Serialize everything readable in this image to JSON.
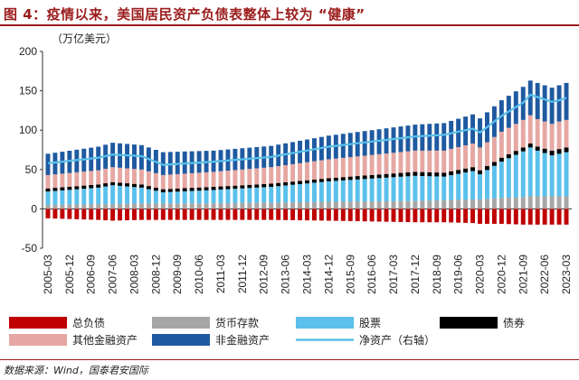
{
  "figure": {
    "title": "图 4：疫情以来，美国居民资产负债表整体上较为 “健康”",
    "source": "数据来源：Wind，国泰君安国际"
  },
  "colors": {
    "title": "#9b1b1b",
    "liabilities": "#c00000",
    "cash_deposits": "#a6a6a6",
    "stocks": "#5bc0eb",
    "bonds": "#000000",
    "other_financial": "#e6a7a3",
    "nonfinancial": "#1f5aa0",
    "net_worth": "#5bc0eb"
  },
  "chart_data": {
    "type": "bar",
    "stacked": true,
    "ylabel": "（万亿美元）",
    "ylim": [
      -50,
      200
    ],
    "yticks": [
      -50,
      0,
      50,
      100,
      150,
      200
    ],
    "grid": false,
    "legend_position": "bottom",
    "x_tick_labels": [
      "2005-03",
      "2005-12",
      "2006-09",
      "2007-06",
      "2008-03",
      "2008-12",
      "2009-09",
      "2010-06",
      "2011-03",
      "2011-12",
      "2012-09",
      "2013-06",
      "2014-03",
      "2014-12",
      "2015-09",
      "2016-06",
      "2017-03",
      "2017-12",
      "2018-09",
      "2019-06",
      "2020-03",
      "2020-12",
      "2021-09",
      "2022-06",
      "2023-03"
    ],
    "anchor_quarters": [
      "2005-03",
      "2006-12",
      "2007-06",
      "2008-06",
      "2009-03",
      "2010-12",
      "2012-12",
      "2014-12",
      "2017-12",
      "2018-12",
      "2019-12",
      "2020-03",
      "2020-12",
      "2021-09",
      "2021-12",
      "2022-03",
      "2022-09",
      "2022-12",
      "2023-03"
    ],
    "series": [
      {
        "name": "总负债",
        "key": "liabilities",
        "kind": "bar",
        "values": [
          -12,
          -14,
          -15,
          -14,
          -14,
          -14,
          -14,
          -15,
          -17,
          -17,
          -18,
          -19,
          -19,
          -20,
          -20,
          -20,
          -20,
          -20,
          -20
        ]
      },
      {
        "name": "货币存款",
        "key": "cash_deposits",
        "kind": "bar",
        "values": [
          5,
          6,
          6,
          7,
          7,
          7,
          8,
          9,
          10,
          11,
          12,
          12,
          14,
          15,
          16,
          16,
          16,
          16,
          16
        ]
      },
      {
        "name": "股票",
        "key": "stocks",
        "kind": "bar",
        "values": [
          17,
          21,
          24,
          20,
          14,
          17,
          20,
          26,
          32,
          30,
          36,
          32,
          46,
          58,
          62,
          58,
          52,
          54,
          56
        ]
      },
      {
        "name": "债券",
        "key": "bonds",
        "kind": "bar",
        "values": [
          4,
          4,
          4,
          4,
          4,
          4,
          4,
          4,
          5,
          5,
          5,
          5,
          5,
          5,
          5,
          5,
          6,
          6,
          6
        ]
      },
      {
        "name": "其他金融资产",
        "key": "other_financial",
        "kind": "bar",
        "values": [
          17,
          18,
          19,
          19,
          18,
          19,
          21,
          24,
          27,
          28,
          30,
          29,
          33,
          35,
          36,
          35,
          34,
          35,
          35
        ]
      },
      {
        "name": "非金融资产",
        "key": "nonfinancial",
        "kind": "bar",
        "values": [
          27,
          30,
          31,
          31,
          29,
          27,
          27,
          30,
          33,
          35,
          37,
          37,
          40,
          42,
          44,
          46,
          46,
          46,
          47
        ]
      },
      {
        "name": "净资产（右轴）",
        "key": "net_worth",
        "kind": "line",
        "values": [
          58,
          65,
          69,
          67,
          56,
          60,
          66,
          79,
          92,
          94,
          102,
          97,
          118,
          135,
          145,
          142,
          136,
          138,
          141
        ]
      }
    ]
  }
}
